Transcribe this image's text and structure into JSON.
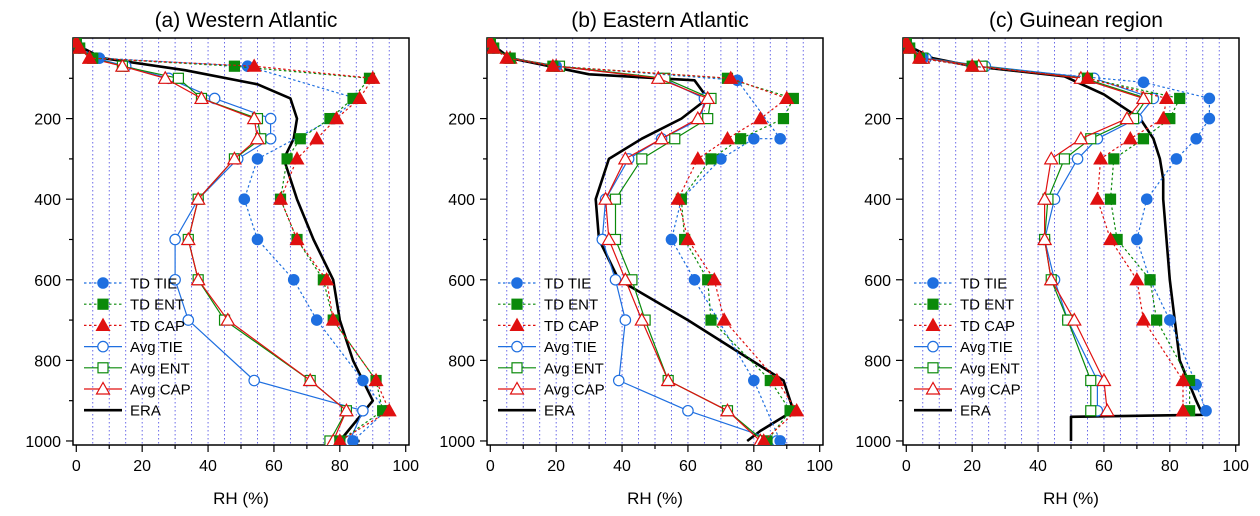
{
  "figure": {
    "panels": [
      {
        "title": "(a) Western Atlantic",
        "xlabel": "RH (%)"
      },
      {
        "title": "(b) Eastern Atlantic",
        "xlabel": "RH (%)"
      },
      {
        "title": "(c) Guinean region",
        "xlabel": "RH (%)"
      }
    ]
  },
  "chart_data": [
    {
      "type": "line",
      "title": "(a) Western Atlantic",
      "xlabel": "RH (%)",
      "ylabel": "",
      "xlim": [
        -1,
        101
      ],
      "ylim": [
        1010,
        0
      ],
      "y_inverted": true,
      "x_ticks": [
        0,
        20,
        40,
        60,
        80,
        100
      ],
      "y_ticks": [
        200,
        400,
        600,
        800,
        1000
      ],
      "grid": "vertical dotted every 5%",
      "legend_position": "bottom-left",
      "series": [
        {
          "name": "TD TIE",
          "color": "#1f6fe0",
          "marker": "circle",
          "filled": true,
          "dashed": true,
          "x": [
            0,
            1,
            7,
            52,
            85,
            78,
            55,
            51,
            55,
            66,
            73,
            87,
            94,
            84
          ],
          "y": [
            10,
            25,
            50,
            70,
            150,
            200,
            300,
            400,
            500,
            600,
            700,
            850,
            925,
            1000
          ]
        },
        {
          "name": "TD ENT",
          "color": "#0a8a0a",
          "marker": "square",
          "filled": true,
          "dashed": true,
          "x": [
            0,
            1,
            5,
            48,
            89,
            84,
            77,
            68,
            64,
            62,
            67,
            75,
            78,
            91,
            93,
            80
          ],
          "y": [
            10,
            25,
            50,
            70,
            100,
            150,
            200,
            250,
            300,
            400,
            500,
            600,
            700,
            850,
            925,
            1000
          ]
        },
        {
          "name": "TD CAP",
          "color": "#e01010",
          "marker": "triangle",
          "filled": true,
          "dashed": true,
          "x": [
            0,
            1,
            4,
            54,
            90,
            86,
            79,
            73,
            67,
            62,
            67,
            76,
            78,
            91,
            95,
            80
          ],
          "y": [
            10,
            25,
            50,
            70,
            100,
            150,
            200,
            250,
            300,
            400,
            500,
            600,
            700,
            850,
            925,
            1000
          ]
        },
        {
          "name": "Avg TIE",
          "color": "#1f6fe0",
          "marker": "circle",
          "filled": false,
          "dashed": false,
          "x": [
            0,
            1,
            6,
            15,
            28,
            42,
            59,
            59,
            49,
            37,
            30,
            30,
            34,
            54,
            87,
            83
          ],
          "y": [
            10,
            25,
            50,
            70,
            100,
            150,
            200,
            250,
            300,
            400,
            500,
            600,
            700,
            850,
            925,
            1000
          ]
        },
        {
          "name": "Avg ENT",
          "color": "#0a8a0a",
          "marker": "square",
          "filled": false,
          "dashed": false,
          "x": [
            0,
            1,
            5,
            14,
            31,
            38,
            55,
            56,
            48,
            37,
            34,
            37,
            45,
            71,
            82,
            77
          ],
          "y": [
            10,
            25,
            50,
            70,
            100,
            150,
            200,
            250,
            300,
            400,
            500,
            600,
            700,
            850,
            925,
            1000
          ]
        },
        {
          "name": "Avg CAP",
          "color": "#e01010",
          "marker": "triangle",
          "filled": false,
          "dashed": false,
          "x": [
            0,
            1,
            4,
            14,
            27,
            38,
            54,
            55,
            48,
            37,
            34,
            37,
            46,
            71,
            82,
            78
          ],
          "y": [
            10,
            25,
            50,
            70,
            100,
            150,
            200,
            250,
            300,
            400,
            500,
            600,
            700,
            850,
            925,
            1000
          ]
        },
        {
          "name": "ERA",
          "color": "#000000",
          "marker": "none",
          "filled": false,
          "dashed": false,
          "x": [
            0,
            2,
            8,
            33,
            55,
            65,
            67,
            66,
            63,
            67,
            72,
            78,
            80,
            84,
            90,
            80,
            86
          ],
          "y": [
            10,
            25,
            50,
            80,
            115,
            150,
            200,
            250,
            300,
            400,
            500,
            600,
            700,
            800,
            900,
            1000,
            1000
          ]
        }
      ]
    },
    {
      "type": "line",
      "title": "(b) Eastern Atlantic",
      "xlabel": "RH (%)",
      "ylabel": "",
      "xlim": [
        -1,
        101
      ],
      "ylim": [
        1010,
        0
      ],
      "y_inverted": true,
      "x_ticks": [
        0,
        20,
        40,
        60,
        80,
        100
      ],
      "y_ticks": [
        200,
        400,
        600,
        800,
        1000
      ],
      "grid": "vertical dotted every 5%",
      "legend_position": "bottom-left",
      "series": [
        {
          "name": "TD TIE",
          "color": "#1f6fe0",
          "marker": "circle",
          "filled": true,
          "dashed": true,
          "x": [
            0,
            1,
            6,
            20,
            75,
            88,
            80,
            70,
            58,
            55,
            62,
            80,
            88
          ],
          "y": [
            10,
            25,
            50,
            70,
            105,
            250,
            250,
            300,
            400,
            500,
            600,
            850,
            1000
          ]
        },
        {
          "name": "TD ENT",
          "color": "#0a8a0a",
          "marker": "square",
          "filled": true,
          "dashed": true,
          "x": [
            0,
            1,
            6,
            19,
            72,
            92,
            89,
            76,
            67,
            58,
            59,
            66,
            67,
            85,
            91,
            84
          ],
          "y": [
            10,
            25,
            50,
            70,
            100,
            150,
            200,
            250,
            300,
            400,
            500,
            600,
            700,
            850,
            925,
            1000
          ]
        },
        {
          "name": "TD CAP",
          "color": "#e01010",
          "marker": "triangle",
          "filled": true,
          "dashed": true,
          "x": [
            0,
            1,
            5,
            19,
            73,
            90,
            82,
            72,
            63,
            57,
            60,
            68,
            71,
            87,
            93,
            83
          ],
          "y": [
            10,
            25,
            50,
            70,
            100,
            150,
            200,
            250,
            300,
            400,
            500,
            600,
            700,
            850,
            925,
            1000
          ]
        },
        {
          "name": "Avg TIE",
          "color": "#1f6fe0",
          "marker": "circle",
          "filled": false,
          "dashed": false,
          "x": [
            0,
            1,
            6,
            20,
            52,
            65,
            64,
            52,
            42,
            35,
            34,
            38,
            41,
            39,
            60,
            87
          ],
          "y": [
            10,
            25,
            50,
            70,
            100,
            150,
            200,
            250,
            300,
            400,
            500,
            600,
            700,
            850,
            925,
            1000
          ]
        },
        {
          "name": "Avg ENT",
          "color": "#0a8a0a",
          "marker": "square",
          "filled": false,
          "dashed": false,
          "x": [
            0,
            1,
            6,
            21,
            53,
            67,
            66,
            56,
            46,
            38,
            38,
            43,
            47,
            54,
            72,
            83
          ],
          "y": [
            10,
            25,
            50,
            70,
            100,
            150,
            200,
            250,
            300,
            400,
            500,
            600,
            700,
            850,
            925,
            1000
          ]
        },
        {
          "name": "Avg CAP",
          "color": "#e01010",
          "marker": "triangle",
          "filled": false,
          "dashed": false,
          "x": [
            0,
            1,
            6,
            20,
            51,
            66,
            63,
            52,
            41,
            35,
            36,
            41,
            46,
            54,
            72,
            82
          ],
          "y": [
            10,
            25,
            50,
            70,
            100,
            150,
            200,
            250,
            300,
            400,
            500,
            600,
            700,
            850,
            925,
            1000
          ]
        },
        {
          "name": "ERA",
          "color": "#000000",
          "marker": "none",
          "filled": false,
          "dashed": false,
          "x": [
            0,
            2,
            6,
            30,
            62,
            66,
            58,
            46,
            36,
            32,
            33,
            39,
            60,
            89,
            92,
            82,
            78
          ],
          "y": [
            10,
            25,
            50,
            90,
            105,
            150,
            200,
            250,
            300,
            400,
            500,
            600,
            700,
            850,
            925,
            975,
            1000
          ]
        }
      ]
    },
    {
      "type": "line",
      "title": "(c) Guinean region",
      "xlabel": "RH (%)",
      "ylabel": "",
      "xlim": [
        -1,
        101
      ],
      "ylim": [
        1010,
        0
      ],
      "y_inverted": true,
      "x_ticks": [
        0,
        20,
        40,
        60,
        80,
        100
      ],
      "y_ticks": [
        200,
        400,
        600,
        800,
        1000
      ],
      "grid": "vertical dotted every 5%",
      "legend_position": "bottom-left",
      "series": [
        {
          "name": "TD TIE",
          "color": "#1f6fe0",
          "marker": "circle",
          "filled": true,
          "dashed": true,
          "x": [
            0,
            1,
            5,
            20,
            72,
            92,
            92,
            88,
            82,
            73,
            70,
            74,
            80,
            88,
            91
          ],
          "y": [
            10,
            25,
            50,
            70,
            110,
            150,
            200,
            250,
            300,
            400,
            500,
            600,
            700,
            860,
            925
          ]
        },
        {
          "name": "TD ENT",
          "color": "#0a8a0a",
          "marker": "square",
          "filled": true,
          "dashed": true,
          "x": [
            0,
            1,
            4,
            20,
            55,
            83,
            80,
            72,
            63,
            62,
            64,
            74,
            76,
            86,
            86
          ],
          "y": [
            10,
            25,
            50,
            70,
            100,
            150,
            200,
            250,
            300,
            400,
            500,
            600,
            700,
            850,
            925
          ]
        },
        {
          "name": "TD CAP",
          "color": "#e01010",
          "marker": "triangle",
          "filled": true,
          "dashed": true,
          "x": [
            0,
            1,
            4,
            20,
            55,
            79,
            78,
            68,
            59,
            58,
            62,
            70,
            72,
            84,
            84
          ],
          "y": [
            10,
            25,
            50,
            70,
            100,
            150,
            200,
            250,
            300,
            400,
            500,
            600,
            700,
            850,
            925
          ]
        },
        {
          "name": "Avg TIE",
          "color": "#1f6fe0",
          "marker": "circle",
          "filled": false,
          "dashed": false,
          "x": [
            0,
            1,
            6,
            24,
            57,
            75,
            70,
            58,
            52,
            45,
            42,
            45,
            49,
            58,
            58
          ],
          "y": [
            10,
            25,
            50,
            70,
            100,
            150,
            200,
            250,
            300,
            400,
            500,
            600,
            700,
            850,
            925
          ]
        },
        {
          "name": "Avg ENT",
          "color": "#0a8a0a",
          "marker": "square",
          "filled": false,
          "dashed": false,
          "x": [
            0,
            1,
            5,
            23,
            54,
            73,
            69,
            56,
            48,
            43,
            42,
            44,
            49,
            56,
            56
          ],
          "y": [
            10,
            25,
            50,
            70,
            100,
            150,
            200,
            250,
            300,
            400,
            500,
            600,
            700,
            850,
            925
          ]
        },
        {
          "name": "Avg CAP",
          "color": "#e01010",
          "marker": "triangle",
          "filled": false,
          "dashed": false,
          "x": [
            0,
            1,
            5,
            22,
            53,
            72,
            67,
            53,
            44,
            42,
            42,
            44,
            51,
            60,
            61
          ],
          "y": [
            10,
            25,
            50,
            70,
            100,
            150,
            200,
            250,
            300,
            400,
            500,
            600,
            700,
            850,
            925
          ]
        },
        {
          "name": "ERA",
          "color": "#000000",
          "marker": "none",
          "filled": false,
          "dashed": false,
          "x": [
            0,
            2,
            8,
            20,
            48,
            60,
            71,
            75,
            77,
            78,
            78,
            79,
            80,
            83,
            88,
            90,
            50,
            50
          ],
          "y": [
            10,
            25,
            50,
            70,
            95,
            140,
            200,
            250,
            300,
            350,
            400,
            500,
            600,
            800,
            900,
            935,
            940,
            1000
          ]
        }
      ]
    }
  ]
}
